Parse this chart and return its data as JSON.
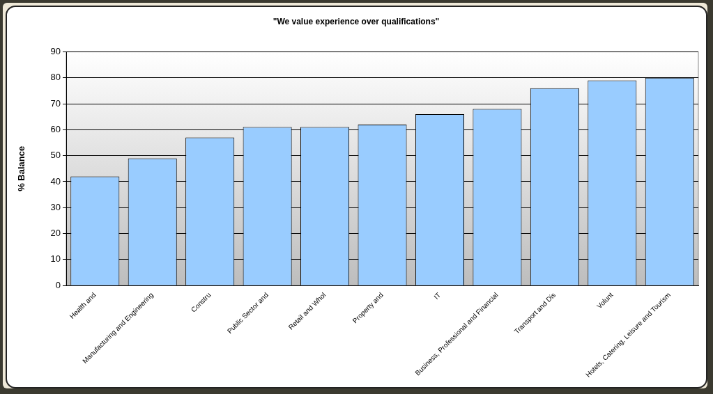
{
  "chart_data": {
    "type": "bar",
    "title": "\"We value experience over qualifications\"",
    "ylabel": "% Balance",
    "categories": [
      "Health and",
      "Manufacturing and Engineering",
      "Constru",
      "Public Sector and",
      "Retail and Whol",
      "Property and",
      "IT",
      "Business, Professional and Financial",
      "Transport and Dis",
      "Volunt",
      "Hotels, Catering, Leisure and Tourism"
    ],
    "values": [
      42,
      49,
      57,
      61,
      61,
      62,
      66,
      68,
      76,
      79,
      80
    ],
    "color": "#99ccff",
    "ylim": [
      0,
      90
    ],
    "yticks": [
      0,
      10,
      20,
      30,
      40,
      50,
      60,
      70,
      80,
      90
    ],
    "grid": "y",
    "legend": false
  }
}
